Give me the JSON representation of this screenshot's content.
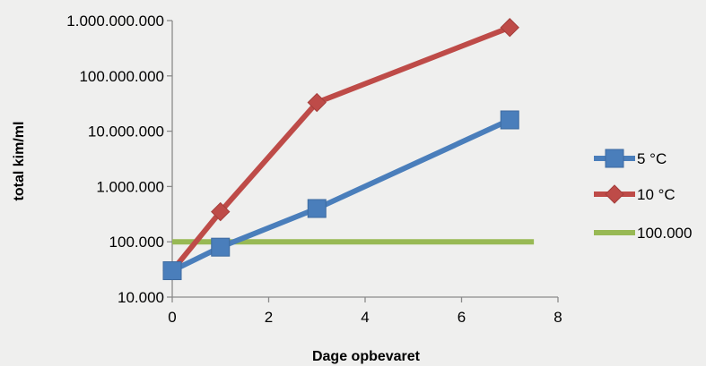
{
  "chart_data": {
    "type": "line",
    "xlabel": "Dage opbevaret",
    "ylabel": "total kim/ml",
    "xlim": [
      0,
      8
    ],
    "x_ticks": [
      "0",
      "2",
      "4",
      "6",
      "8"
    ],
    "x_tick_values": [
      0,
      2,
      4,
      6,
      8
    ],
    "ylim": [
      10000,
      1000000000
    ],
    "yscale": "log",
    "y_ticks": [
      "10.000",
      "100.000",
      "1.000.000",
      "10.000.000",
      "100.000.000",
      "1.000.000.000"
    ],
    "y_tick_values": [
      10000,
      100000,
      1000000,
      10000000,
      100000000,
      1000000000
    ],
    "grid": false,
    "legend_position": "right",
    "series": [
      {
        "name": "5 °C",
        "color": "#4a7ebb",
        "marker": "square",
        "x": [
          0,
          1,
          3,
          7
        ],
        "y": [
          30000,
          80000,
          400000,
          16000000
        ]
      },
      {
        "name": "10 °C",
        "color": "#be4b48",
        "marker": "diamond",
        "x": [
          0,
          1,
          3,
          7
        ],
        "y": [
          30000,
          350000,
          33000000,
          750000000
        ]
      },
      {
        "name": "100.000",
        "color": "#98b954",
        "marker": "none",
        "x": [
          0,
          7.5
        ],
        "y": [
          100000,
          100000
        ]
      }
    ]
  }
}
